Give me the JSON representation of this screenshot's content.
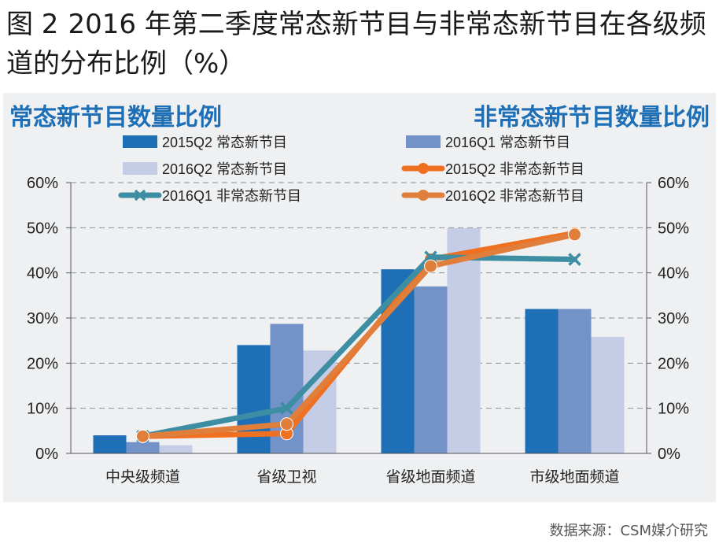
{
  "figure": {
    "label": "图 2",
    "title": "2016 年第二季度常态新节目与非常态新节目在各级频道的分布比例（%）",
    "source": "数据来源：CSM媒介研究"
  },
  "chart_data": {
    "type": "bar",
    "subtitle_left": "常态新节目数量比例",
    "subtitle_right": "非常态新节目数量比例",
    "categories": [
      "中央级频道",
      "省级卫视",
      "省级地面频道",
      "市级地面频道"
    ],
    "ylim": [
      0,
      60
    ],
    "y_ticks": [
      "0%",
      "10%",
      "20%",
      "30%",
      "40%",
      "50%",
      "60%"
    ],
    "y2_ticks": [
      "0%",
      "10%",
      "20%",
      "30%",
      "40%",
      "50%",
      "60%"
    ],
    "grid": "horizontal-dashed",
    "legend_position": "top",
    "bar_series": [
      {
        "name": "2015Q2 常态新节目",
        "color": "#1f6fb6",
        "values": [
          4.0,
          24.0,
          40.8,
          32.0
        ]
      },
      {
        "name": "2016Q1 常态新节目",
        "color": "#7393c8",
        "values": [
          2.5,
          28.7,
          37.0,
          32.0
        ]
      },
      {
        "name": "2016Q2 常态新节目",
        "color": "#c5cde6",
        "values": [
          1.8,
          22.8,
          49.9,
          25.8
        ]
      }
    ],
    "line_series": [
      {
        "name": "2015Q2 非常态新节目",
        "color": "#f07022",
        "marker": "circle",
        "values": [
          3.8,
          4.4,
          43.0,
          48.8
        ]
      },
      {
        "name": "2016Q1 非常态新节目",
        "color": "#3d8ea3",
        "marker": "x",
        "values": [
          3.8,
          10.0,
          43.5,
          43.0
        ]
      },
      {
        "name": "2016Q2 非常态新节目",
        "color": "#e07e3c",
        "marker": "circle",
        "values": [
          3.8,
          6.5,
          41.5,
          48.5
        ]
      }
    ]
  }
}
